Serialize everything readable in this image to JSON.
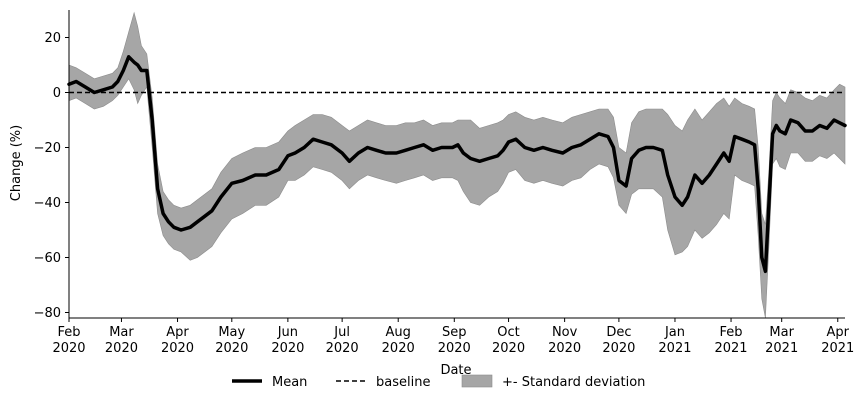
{
  "chart_data": {
    "type": "line",
    "title": "",
    "xlabel": "Date",
    "ylabel": "Change (%)",
    "xlim": [
      "2020-02-01",
      "2021-04-05"
    ],
    "ylim": [
      -82,
      30
    ],
    "y_ticks": [
      20,
      0,
      -20,
      -40,
      -60,
      -80
    ],
    "x_ticks": [
      {
        "date": "2020-02-01",
        "label": [
          "Feb",
          "2020"
        ]
      },
      {
        "date": "2020-03-01",
        "label": [
          "Mar",
          "2020"
        ]
      },
      {
        "date": "2020-04-01",
        "label": [
          "Apr",
          "2020"
        ]
      },
      {
        "date": "2020-05-01",
        "label": [
          "May",
          "2020"
        ]
      },
      {
        "date": "2020-06-01",
        "label": [
          "Jun",
          "2020"
        ]
      },
      {
        "date": "2020-07-01",
        "label": [
          "Jul",
          "2020"
        ]
      },
      {
        "date": "2020-08-01",
        "label": [
          "Aug",
          "2020"
        ]
      },
      {
        "date": "2020-09-01",
        "label": [
          "Sep",
          "2020"
        ]
      },
      {
        "date": "2020-10-01",
        "label": [
          "Oct",
          "2020"
        ]
      },
      {
        "date": "2020-11-01",
        "label": [
          "Nov",
          "2020"
        ]
      },
      {
        "date": "2020-12-01",
        "label": [
          "Dec",
          "2020"
        ]
      },
      {
        "date": "2021-01-01",
        "label": [
          "Jan",
          "2021"
        ]
      },
      {
        "date": "2021-02-01",
        "label": [
          "Feb",
          "2021"
        ]
      },
      {
        "date": "2021-03-01",
        "label": [
          "Mar",
          "2021"
        ]
      },
      {
        "date": "2021-04-01",
        "label": [
          "Apr",
          "2021"
        ]
      }
    ],
    "grid": false,
    "legend": {
      "position": "bottom-center",
      "entries": [
        {
          "label": "Mean",
          "style": "thick-solid"
        },
        {
          "label": "baseline",
          "style": "dashed"
        },
        {
          "label": "+- Standard deviation",
          "style": "band"
        }
      ]
    },
    "colors": {
      "mean": "#000000",
      "baseline": "#000000",
      "band": "#a6a6a6"
    },
    "baseline": {
      "name": "baseline",
      "value": 0
    },
    "series": [
      {
        "name": "Mean",
        "x": [
          "2020-02-01",
          "2020-02-05",
          "2020-02-10",
          "2020-02-15",
          "2020-02-20",
          "2020-02-25",
          "2020-02-28",
          "2020-03-02",
          "2020-03-05",
          "2020-03-08",
          "2020-03-10",
          "2020-03-12",
          "2020-03-15",
          "2020-03-18",
          "2020-03-21",
          "2020-03-24",
          "2020-03-27",
          "2020-03-30",
          "2020-04-03",
          "2020-04-08",
          "2020-04-12",
          "2020-04-16",
          "2020-04-20",
          "2020-04-25",
          "2020-05-01",
          "2020-05-07",
          "2020-05-14",
          "2020-05-20",
          "2020-05-27",
          "2020-06-01",
          "2020-06-05",
          "2020-06-10",
          "2020-06-15",
          "2020-06-20",
          "2020-06-25",
          "2020-07-01",
          "2020-07-05",
          "2020-07-10",
          "2020-07-15",
          "2020-07-20",
          "2020-07-25",
          "2020-07-31",
          "2020-08-05",
          "2020-08-10",
          "2020-08-15",
          "2020-08-20",
          "2020-08-25",
          "2020-08-31",
          "2020-09-03",
          "2020-09-06",
          "2020-09-10",
          "2020-09-15",
          "2020-09-20",
          "2020-09-25",
          "2020-09-28",
          "2020-10-01",
          "2020-10-05",
          "2020-10-10",
          "2020-10-15",
          "2020-10-20",
          "2020-10-25",
          "2020-10-31",
          "2020-11-05",
          "2020-11-10",
          "2020-11-15",
          "2020-11-20",
          "2020-11-25",
          "2020-11-28",
          "2020-12-01",
          "2020-12-05",
          "2020-12-08",
          "2020-12-12",
          "2020-12-16",
          "2020-12-20",
          "2020-12-25",
          "2020-12-28",
          "2021-01-01",
          "2021-01-05",
          "2021-01-08",
          "2021-01-12",
          "2021-01-16",
          "2021-01-20",
          "2021-01-24",
          "2021-01-28",
          "2021-01-31",
          "2021-02-03",
          "2021-02-07",
          "2021-02-11",
          "2021-02-14",
          "2021-02-16",
          "2021-02-18",
          "2021-02-20",
          "2021-02-22",
          "2021-02-24",
          "2021-02-26",
          "2021-02-28",
          "2021-03-03",
          "2021-03-06",
          "2021-03-10",
          "2021-03-14",
          "2021-03-18",
          "2021-03-22",
          "2021-03-26",
          "2021-03-30",
          "2021-04-02",
          "2021-04-05"
        ],
        "y": [
          3,
          4,
          2,
          0,
          1,
          2,
          4,
          8,
          13,
          11,
          10,
          8,
          8,
          -10,
          -35,
          -44,
          -47,
          -49,
          -50,
          -49,
          -47,
          -45,
          -43,
          -38,
          -33,
          -32,
          -30,
          -30,
          -28,
          -23,
          -22,
          -20,
          -17,
          -18,
          -19,
          -22,
          -25,
          -22,
          -20,
          -21,
          -22,
          -22,
          -21,
          -20,
          -19,
          -21,
          -20,
          -20,
          -19,
          -22,
          -24,
          -25,
          -24,
          -23,
          -21,
          -18,
          -17,
          -20,
          -21,
          -20,
          -21,
          -22,
          -20,
          -19,
          -17,
          -15,
          -16,
          -20,
          -32,
          -34,
          -24,
          -21,
          -20,
          -20,
          -21,
          -30,
          -38,
          -41,
          -38,
          -30,
          -33,
          -30,
          -26,
          -22,
          -25,
          -16,
          -17,
          -18,
          -19,
          -35,
          -60,
          -65,
          -40,
          -15,
          -12,
          -14,
          -15,
          -10,
          -11,
          -14,
          -14,
          -12,
          -13,
          -10,
          -11,
          -12
        ]
      },
      {
        "name": "+- Standard deviation",
        "x": [
          "2020-02-01",
          "2020-02-05",
          "2020-02-10",
          "2020-02-15",
          "2020-02-20",
          "2020-02-25",
          "2020-02-28",
          "2020-03-02",
          "2020-03-05",
          "2020-03-08",
          "2020-03-10",
          "2020-03-12",
          "2020-03-15",
          "2020-03-18",
          "2020-03-21",
          "2020-03-24",
          "2020-03-27",
          "2020-03-30",
          "2020-04-03",
          "2020-04-08",
          "2020-04-12",
          "2020-04-16",
          "2020-04-20",
          "2020-04-25",
          "2020-05-01",
          "2020-05-07",
          "2020-05-14",
          "2020-05-20",
          "2020-05-27",
          "2020-06-01",
          "2020-06-05",
          "2020-06-10",
          "2020-06-15",
          "2020-06-20",
          "2020-06-25",
          "2020-07-01",
          "2020-07-05",
          "2020-07-10",
          "2020-07-15",
          "2020-07-20",
          "2020-07-25",
          "2020-07-31",
          "2020-08-05",
          "2020-08-10",
          "2020-08-15",
          "2020-08-20",
          "2020-08-25",
          "2020-08-31",
          "2020-09-03",
          "2020-09-06",
          "2020-09-10",
          "2020-09-15",
          "2020-09-20",
          "2020-09-25",
          "2020-09-28",
          "2020-10-01",
          "2020-10-05",
          "2020-10-10",
          "2020-10-15",
          "2020-10-20",
          "2020-10-25",
          "2020-10-31",
          "2020-11-05",
          "2020-11-10",
          "2020-11-15",
          "2020-11-20",
          "2020-11-25",
          "2020-11-28",
          "2020-12-01",
          "2020-12-05",
          "2020-12-08",
          "2020-12-12",
          "2020-12-16",
          "2020-12-20",
          "2020-12-25",
          "2020-12-28",
          "2021-01-01",
          "2021-01-05",
          "2021-01-08",
          "2021-01-12",
          "2021-01-16",
          "2021-01-20",
          "2021-01-24",
          "2021-01-28",
          "2021-01-31",
          "2021-02-03",
          "2021-02-07",
          "2021-02-11",
          "2021-02-14",
          "2021-02-16",
          "2021-02-18",
          "2021-02-20",
          "2021-02-22",
          "2021-02-24",
          "2021-02-26",
          "2021-02-28",
          "2021-03-03",
          "2021-03-06",
          "2021-03-10",
          "2021-03-14",
          "2021-03-18",
          "2021-03-22",
          "2021-03-26",
          "2021-03-30",
          "2021-04-02",
          "2021-04-05"
        ],
        "upper": [
          10,
          9,
          7,
          5,
          6,
          7,
          9,
          15,
          22,
          29,
          24,
          17,
          14,
          -2,
          -26,
          -36,
          -39,
          -41,
          -42,
          -41,
          -39,
          -37,
          -35,
          -29,
          -24,
          -22,
          -20,
          -20,
          -18,
          -14,
          -12,
          -10,
          -8,
          -8,
          -9,
          -12,
          -14,
          -12,
          -10,
          -11,
          -12,
          -12,
          -11,
          -11,
          -10,
          -12,
          -11,
          -11,
          -10,
          -10,
          -10,
          -13,
          -12,
          -11,
          -10,
          -8,
          -7,
          -9,
          -10,
          -9,
          -10,
          -11,
          -9,
          -8,
          -7,
          -6,
          -6,
          -9,
          -20,
          -22,
          -11,
          -7,
          -6,
          -6,
          -6,
          -8,
          -12,
          -14,
          -10,
          -6,
          -10,
          -7,
          -4,
          -2,
          -5,
          -2,
          -4,
          -5,
          -6,
          -20,
          -44,
          -48,
          -28,
          -3,
          0,
          -2,
          -4,
          1,
          0,
          -2,
          -3,
          -1,
          -2,
          1,
          3,
          2
        ],
        "lower": [
          -3,
          -2,
          -4,
          -6,
          -5,
          -3,
          -1,
          2,
          5,
          1,
          -4,
          -1,
          2,
          -20,
          -44,
          -52,
          -55,
          -57,
          -58,
          -61,
          -60,
          -58,
          -56,
          -51,
          -46,
          -44,
          -41,
          -41,
          -38,
          -32,
          -32,
          -30,
          -27,
          -28,
          -29,
          -32,
          -35,
          -32,
          -30,
          -31,
          -32,
          -33,
          -32,
          -31,
          -30,
          -32,
          -31,
          -31,
          -32,
          -36,
          -40,
          -41,
          -38,
          -36,
          -33,
          -29,
          -28,
          -32,
          -33,
          -32,
          -33,
          -34,
          -32,
          -31,
          -28,
          -26,
          -27,
          -31,
          -41,
          -44,
          -37,
          -35,
          -35,
          -35,
          -38,
          -50,
          -59,
          -58,
          -56,
          -50,
          -53,
          -51,
          -48,
          -44,
          -46,
          -30,
          -32,
          -33,
          -34,
          -52,
          -75,
          -82,
          -55,
          -26,
          -24,
          -27,
          -28,
          -22,
          -22,
          -25,
          -25,
          -23,
          -24,
          -22,
          -24,
          -26
        ]
      }
    ]
  }
}
